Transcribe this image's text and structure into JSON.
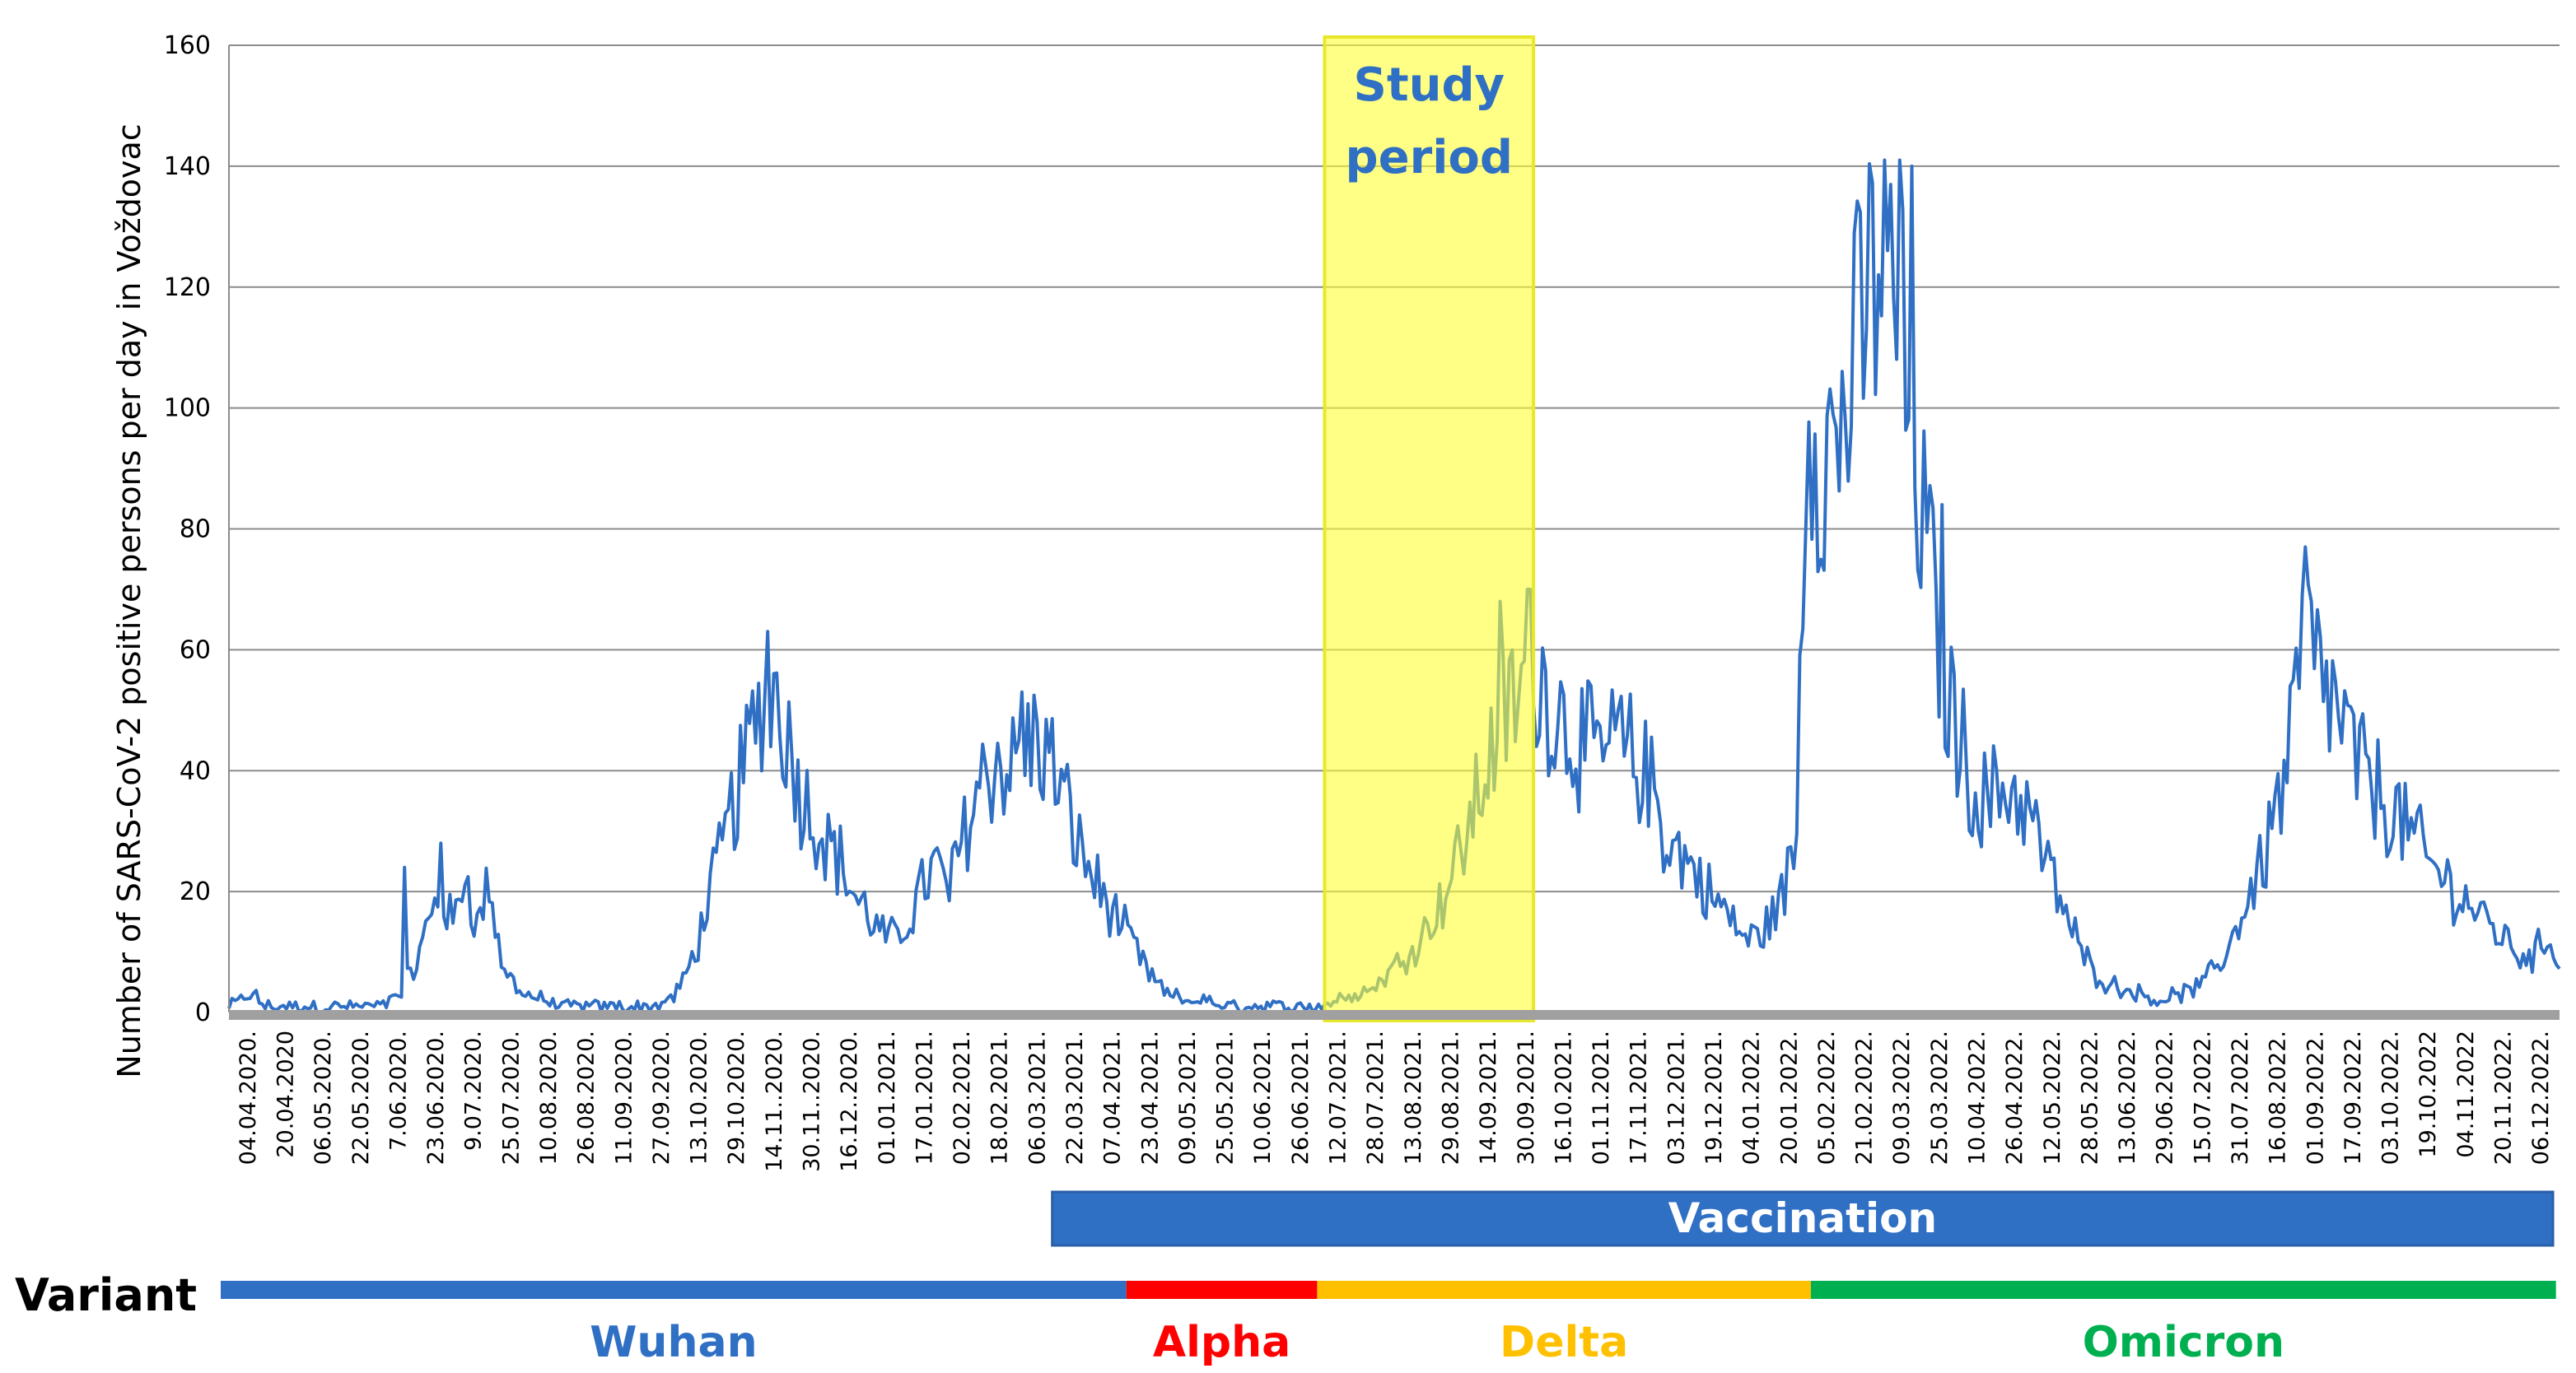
{
  "chart_data": {
    "type": "line",
    "ylabel": "Number of SARS-CoV-2 positive persons per day in Voždovac",
    "xlabel": "",
    "ylim": [
      0,
      160
    ],
    "yticks": [
      0,
      20,
      40,
      60,
      80,
      100,
      120,
      140,
      160
    ],
    "grid": true,
    "series_color": "#2f6fc4",
    "xtick_labels": [
      "04.04.2020.",
      "20.04.2020",
      "06.05.2020.",
      "22.05.2020.",
      "7.06.2020.",
      "23.06.2020.",
      "9.07.2020.",
      "25.07.2020.",
      "10.08.2020.",
      "26.08.2020.",
      "11.09.2020.",
      "27.09.2020.",
      "13.10.2020.",
      "29.10.2020.",
      "14.11..2020.",
      "30.11..2020.",
      "16.12..2020.",
      "01.01.2021.",
      "17.01.2021.",
      "02.02.2021.",
      "18.02.2021.",
      "06.03.2021.",
      "22.03.2021.",
      "07.04.2021.",
      "23.04.2021.",
      "09.05.2021.",
      "25.05.2021.",
      "10.06.2021.",
      "26.06.2021.",
      "12.07.2021.",
      "28.07.2021.",
      "13.08.2021.",
      "29.08.2021.",
      "14.09.2021.",
      "30.09.2021.",
      "16.10.2021.",
      "01.11.2021.",
      "17.11.2021.",
      "03.12.2021.",
      "19.12.2021.",
      "04.01.2022.",
      "20.01.2022.",
      "05.02.2022.",
      "21.02.2022.",
      "09.03.2022.",
      "25.03.2022.",
      "10.04.2022.",
      "26.04.2022.",
      "12.05.2022.",
      "28.05.2022.",
      "13.06.2022.",
      "29.06.2022.",
      "15.07.2022.",
      "31.07.2022.",
      "16.08.2022.",
      "01.09.2022.",
      "17.09.2022.",
      "03.10.2022.",
      "19.10.2022",
      "04.11.2022",
      "20.11.2022.",
      "06.12.2022."
    ],
    "anchors": [
      [
        0,
        1
      ],
      [
        4,
        2
      ],
      [
        8,
        3
      ],
      [
        12,
        1
      ],
      [
        20,
        1
      ],
      [
        30,
        1
      ],
      [
        40,
        1
      ],
      [
        50,
        1
      ],
      [
        56,
        3
      ],
      [
        62,
        8
      ],
      [
        66,
        15
      ],
      [
        70,
        20
      ],
      [
        74,
        14
      ],
      [
        78,
        24
      ],
      [
        82,
        14
      ],
      [
        86,
        22
      ],
      [
        90,
        8
      ],
      [
        94,
        5
      ],
      [
        98,
        3
      ],
      [
        104,
        2
      ],
      [
        110,
        1
      ],
      [
        120,
        1
      ],
      [
        130,
        1
      ],
      [
        140,
        1
      ],
      [
        146,
        2
      ],
      [
        150,
        5
      ],
      [
        154,
        10
      ],
      [
        158,
        18
      ],
      [
        162,
        25
      ],
      [
        166,
        33
      ],
      [
        170,
        40
      ],
      [
        174,
        48
      ],
      [
        178,
        55
      ],
      [
        182,
        52
      ],
      [
        186,
        42
      ],
      [
        190,
        35
      ],
      [
        194,
        32
      ],
      [
        198,
        28
      ],
      [
        202,
        25
      ],
      [
        206,
        20
      ],
      [
        210,
        17
      ],
      [
        214,
        14
      ],
      [
        218,
        12
      ],
      [
        222,
        13
      ],
      [
        226,
        17
      ],
      [
        230,
        22
      ],
      [
        234,
        24
      ],
      [
        238,
        20
      ],
      [
        242,
        28
      ],
      [
        246,
        35
      ],
      [
        250,
        40
      ],
      [
        254,
        42
      ],
      [
        258,
        40
      ],
      [
        262,
        43
      ],
      [
        266,
        45
      ],
      [
        270,
        43
      ],
      [
        274,
        38
      ],
      [
        278,
        32
      ],
      [
        282,
        26
      ],
      [
        286,
        22
      ],
      [
        290,
        18
      ],
      [
        294,
        15
      ],
      [
        298,
        12
      ],
      [
        302,
        8
      ],
      [
        306,
        5
      ],
      [
        310,
        3
      ],
      [
        316,
        2
      ],
      [
        322,
        2
      ],
      [
        330,
        1
      ],
      [
        340,
        1
      ],
      [
        350,
        1
      ],
      [
        360,
        1
      ],
      [
        366,
        2
      ],
      [
        372,
        3
      ],
      [
        378,
        4
      ],
      [
        384,
        7
      ],
      [
        390,
        10
      ],
      [
        396,
        14
      ],
      [
        402,
        20
      ],
      [
        408,
        28
      ],
      [
        414,
        38
      ],
      [
        418,
        45
      ],
      [
        422,
        50
      ],
      [
        426,
        52
      ],
      [
        430,
        58
      ],
      [
        434,
        55
      ],
      [
        438,
        50
      ],
      [
        442,
        48
      ],
      [
        446,
        45
      ],
      [
        450,
        43
      ],
      [
        454,
        42
      ],
      [
        458,
        45
      ],
      [
        462,
        43
      ],
      [
        466,
        40
      ],
      [
        470,
        38
      ],
      [
        474,
        30
      ],
      [
        478,
        27
      ],
      [
        482,
        25
      ],
      [
        486,
        22
      ],
      [
        490,
        19
      ],
      [
        494,
        17
      ],
      [
        498,
        14
      ],
      [
        502,
        12
      ],
      [
        506,
        13
      ],
      [
        510,
        16
      ],
      [
        514,
        20
      ],
      [
        518,
        30
      ],
      [
        520,
        80
      ],
      [
        522,
        103
      ],
      [
        526,
        95
      ],
      [
        530,
        92
      ],
      [
        534,
        100
      ],
      [
        538,
        108
      ],
      [
        542,
        118
      ],
      [
        546,
        128
      ],
      [
        548,
        120
      ],
      [
        552,
        112
      ],
      [
        556,
        95
      ],
      [
        560,
        80
      ],
      [
        564,
        65
      ],
      [
        568,
        52
      ],
      [
        572,
        45
      ],
      [
        576,
        38
      ],
      [
        580,
        35
      ],
      [
        584,
        36
      ],
      [
        588,
        38
      ],
      [
        592,
        35
      ],
      [
        596,
        32
      ],
      [
        600,
        25
      ],
      [
        604,
        20
      ],
      [
        608,
        15
      ],
      [
        612,
        10
      ],
      [
        616,
        7
      ],
      [
        620,
        5
      ],
      [
        626,
        4
      ],
      [
        632,
        3
      ],
      [
        638,
        2
      ],
      [
        644,
        3
      ],
      [
        650,
        4
      ],
      [
        656,
        7
      ],
      [
        660,
        10
      ],
      [
        664,
        15
      ],
      [
        668,
        20
      ],
      [
        672,
        25
      ],
      [
        676,
        33
      ],
      [
        680,
        40
      ],
      [
        684,
        55
      ],
      [
        686,
        70
      ],
      [
        688,
        58
      ],
      [
        692,
        55
      ],
      [
        696,
        50
      ],
      [
        700,
        45
      ],
      [
        704,
        40
      ],
      [
        708,
        38
      ],
      [
        712,
        35
      ],
      [
        716,
        33
      ],
      [
        720,
        30
      ],
      [
        724,
        27
      ],
      [
        728,
        24
      ],
      [
        732,
        22
      ],
      [
        736,
        20
      ],
      [
        740,
        18
      ],
      [
        744,
        16
      ],
      [
        748,
        14
      ],
      [
        752,
        12
      ],
      [
        756,
        10
      ],
      [
        760,
        9
      ],
      [
        764,
        11
      ],
      [
        768,
        12
      ],
      [
        770,
        8
      ]
    ],
    "total_days": 771,
    "annotations": {
      "study_period": {
        "label_line1": "Study",
        "label_line2": "period",
        "from_day": 362,
        "to_day": 431
      }
    }
  },
  "legend": {
    "vaccination_label": "Vaccination",
    "vaccination_from_day": 272,
    "vaccination_color": "#2f6fc4",
    "variant_label": "Variant",
    "variants": [
      {
        "name": "Wuhan",
        "color": "#2f6fc4",
        "from_day": 0,
        "to_day": 299
      },
      {
        "name": "Alpha",
        "color": "#ff0000",
        "from_day": 299,
        "to_day": 362
      },
      {
        "name": "Delta",
        "color": "#ffc000",
        "from_day": 362,
        "to_day": 525
      },
      {
        "name": "Omicron",
        "color": "#00b050",
        "from_day": 525,
        "to_day": 771
      }
    ]
  }
}
